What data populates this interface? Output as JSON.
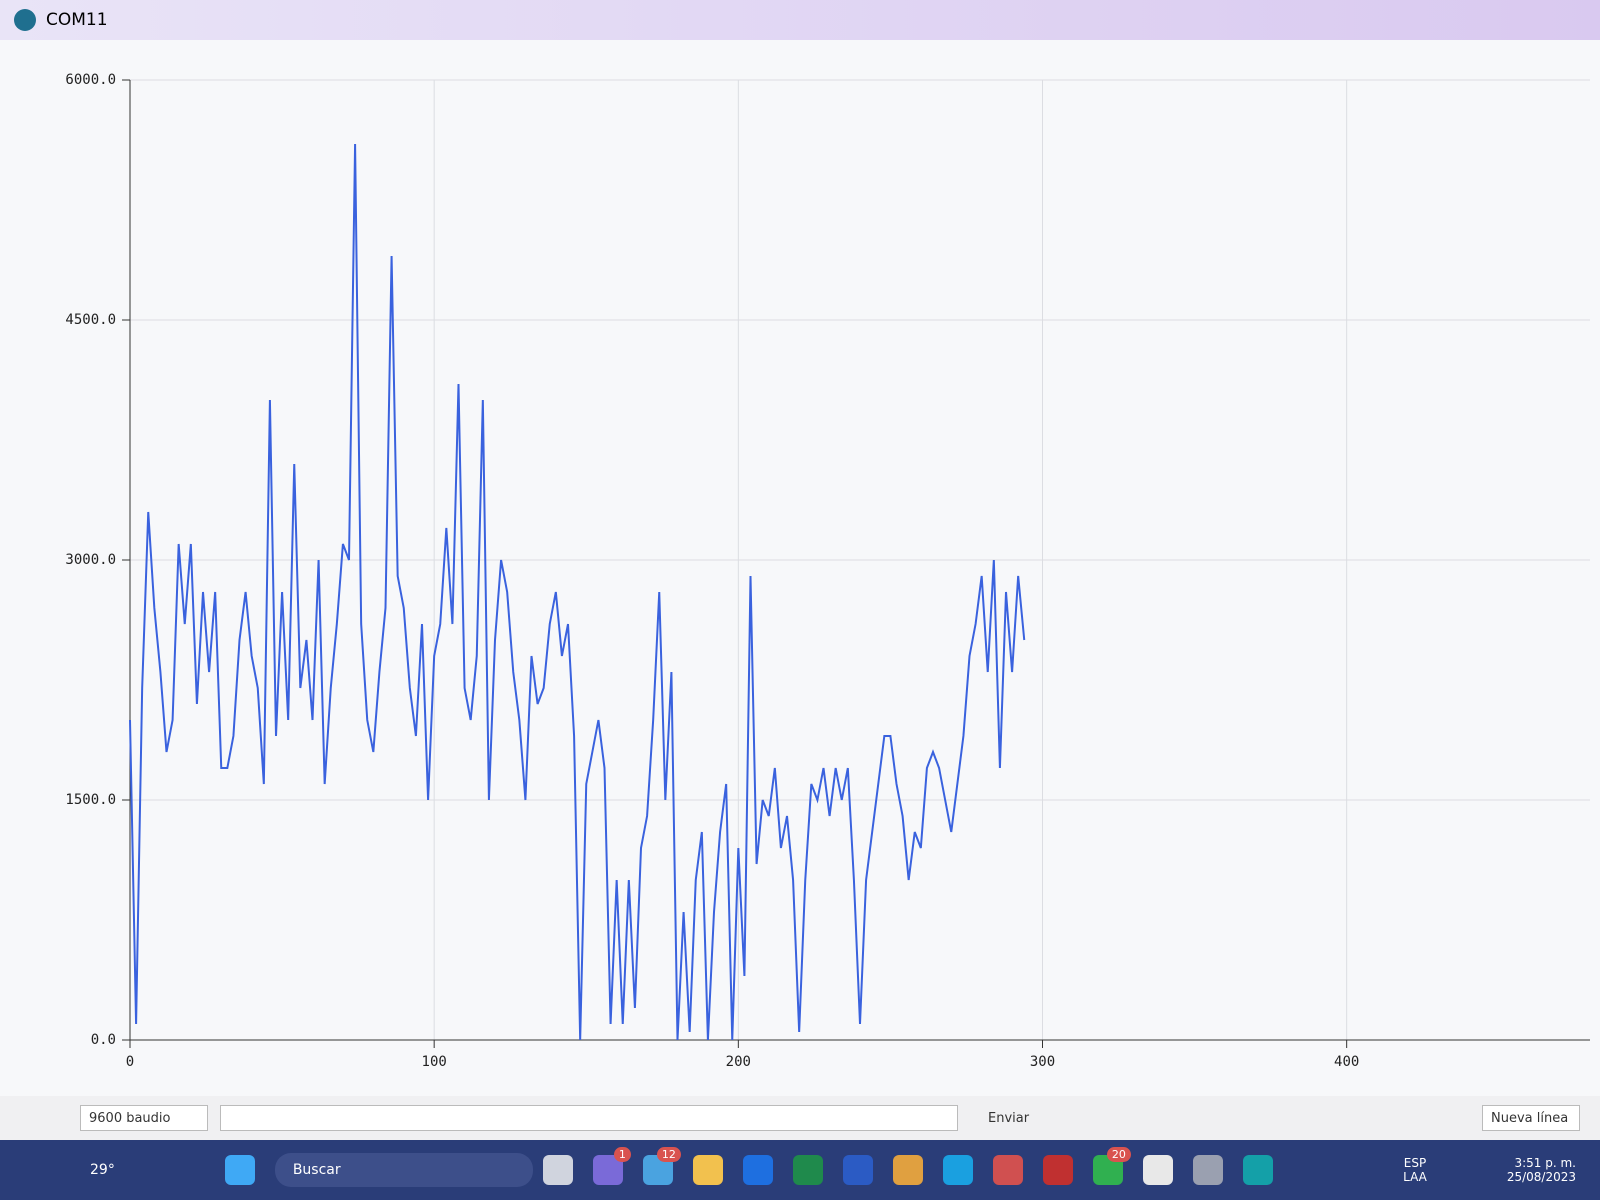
{
  "window": {
    "title": "COM11"
  },
  "chart_data": {
    "type": "line",
    "x": [
      0,
      2,
      4,
      6,
      8,
      10,
      12,
      14,
      16,
      18,
      20,
      22,
      24,
      26,
      28,
      30,
      32,
      34,
      36,
      38,
      40,
      42,
      44,
      46,
      48,
      50,
      52,
      54,
      56,
      58,
      60,
      62,
      64,
      66,
      68,
      70,
      72,
      74,
      76,
      78,
      80,
      82,
      84,
      86,
      88,
      90,
      92,
      94,
      96,
      98,
      100,
      102,
      104,
      106,
      108,
      110,
      112,
      114,
      116,
      118,
      120,
      122,
      124,
      126,
      128,
      130,
      132,
      134,
      136,
      138,
      140,
      142,
      144,
      146,
      148,
      150,
      152,
      154,
      156,
      158,
      160,
      162,
      164,
      166,
      168,
      170,
      172,
      174,
      176,
      178,
      180,
      182,
      184,
      186,
      188,
      190,
      192,
      194,
      196,
      198,
      200,
      202,
      204,
      206,
      208,
      210,
      212,
      214,
      216,
      218,
      220,
      222,
      224,
      226,
      228,
      230,
      232,
      234,
      236,
      238,
      240,
      242,
      244,
      246,
      248,
      250,
      252,
      254,
      256,
      258,
      260,
      262,
      264,
      266,
      268,
      270,
      272,
      274,
      276,
      278,
      280,
      282,
      284,
      286,
      288,
      290,
      292,
      294
    ],
    "series": [
      {
        "color": "#3a62de",
        "values": [
          2000,
          100,
          2200,
          3300,
          2700,
          2300,
          1800,
          2000,
          3100,
          2600,
          3100,
          2100,
          2800,
          2300,
          2800,
          1700,
          1700,
          1900,
          2500,
          2800,
          2400,
          2200,
          1600,
          4000,
          1900,
          2800,
          2000,
          3600,
          2200,
          2500,
          2000,
          3000,
          1600,
          2200,
          2600,
          3100,
          3000,
          5600,
          2600,
          2000,
          1800,
          2300,
          2700,
          4900,
          2900,
          2700,
          2200,
          1900,
          2600,
          1500,
          2400,
          2600,
          3200,
          2600,
          4100,
          2200,
          2000,
          2400,
          4000,
          1500,
          2500,
          3000,
          2800,
          2300,
          2000,
          1500,
          2400,
          2100,
          2200,
          2600,
          2800,
          2400,
          2600,
          1900,
          0,
          1600,
          1800,
          2000,
          1700,
          100,
          1000,
          100,
          1000,
          200,
          1200,
          1400,
          2000,
          2800,
          1500,
          2300,
          0,
          800,
          50,
          1000,
          1300,
          0,
          800,
          1300,
          1600,
          0,
          1200,
          400,
          2900,
          1100,
          1500,
          1400,
          1700,
          1200,
          1400,
          1000,
          50,
          1000,
          1600,
          1500,
          1700,
          1400,
          1700,
          1500,
          1700,
          1000,
          100,
          1000,
          1300,
          1600,
          1900,
          1900,
          1600,
          1400,
          1000,
          1300,
          1200,
          1700,
          1800,
          1700,
          1500,
          1300,
          1600,
          1900,
          2400,
          2600,
          2900,
          2300,
          3000,
          1700,
          2800,
          2300,
          2900,
          2500
        ]
      }
    ],
    "xlim": [
      0,
      480
    ],
    "xticks": [
      0,
      100,
      200,
      300,
      400
    ],
    "ylim": [
      0,
      6000
    ],
    "yticks": [
      {
        "value": 0,
        "label": "0.0"
      },
      {
        "value": 1500,
        "label": "1500.0"
      },
      {
        "value": 3000,
        "label": "3000.0"
      },
      {
        "value": 4500,
        "label": "4500.0"
      },
      {
        "value": 6000,
        "label": "6000.0"
      }
    ],
    "grid": true
  },
  "controls": {
    "baud": "9600 baudio",
    "send": "Enviar",
    "line_ending": "Nueva línea"
  },
  "taskbar": {
    "weather": "29°",
    "search": "Buscar",
    "badges": [
      "1",
      "12",
      "20"
    ],
    "lang": "ESP",
    "layout": "LAA",
    "time": "3:51 p. m.",
    "date": "25/08/2023"
  }
}
